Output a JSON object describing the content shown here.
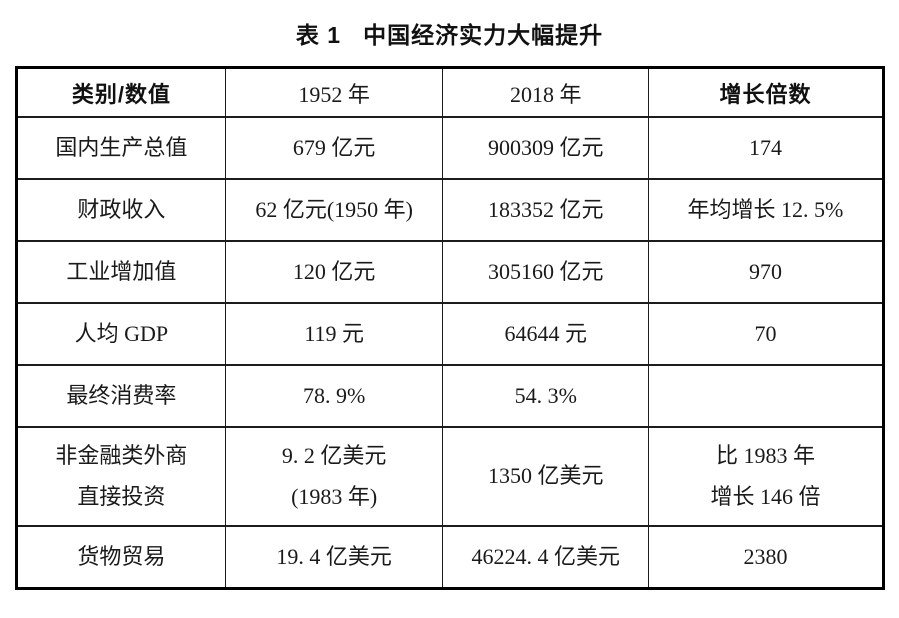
{
  "title": {
    "prefix": "表 1",
    "main": "中国经济实力大幅提升"
  },
  "colors": {
    "background": "#ffffff",
    "text": "#1a1a1a",
    "border": "#000000"
  },
  "table": {
    "headers": [
      "类别/数值",
      "1952 年",
      "2018 年",
      "增长倍数"
    ],
    "rows": [
      {
        "category": "国内生产总值",
        "y1952": "679 亿元",
        "y2018": "900309 亿元",
        "growth": "174"
      },
      {
        "category": "财政收入",
        "y1952": "62 亿元(1950 年)",
        "y2018": "183352 亿元",
        "growth": "年均增长 12. 5%"
      },
      {
        "category": "工业增加值",
        "y1952": "120 亿元",
        "y2018": "305160 亿元",
        "growth": "970"
      },
      {
        "category": "人均 GDP",
        "y1952": "119 元",
        "y2018": "64644 元",
        "growth": "70"
      },
      {
        "category": "最终消费率",
        "y1952": "78. 9%",
        "y2018": "54. 3%",
        "growth": ""
      },
      {
        "category": "非金融类外商\n直接投资",
        "y1952": "9. 2 亿美元\n(1983 年)",
        "y2018": "1350 亿美元",
        "growth": "比 1983 年\n增长 146 倍"
      },
      {
        "category": "货物贸易",
        "y1952": "19. 4 亿美元",
        "y2018": "46224. 4 亿美元",
        "growth": "2380"
      }
    ]
  }
}
